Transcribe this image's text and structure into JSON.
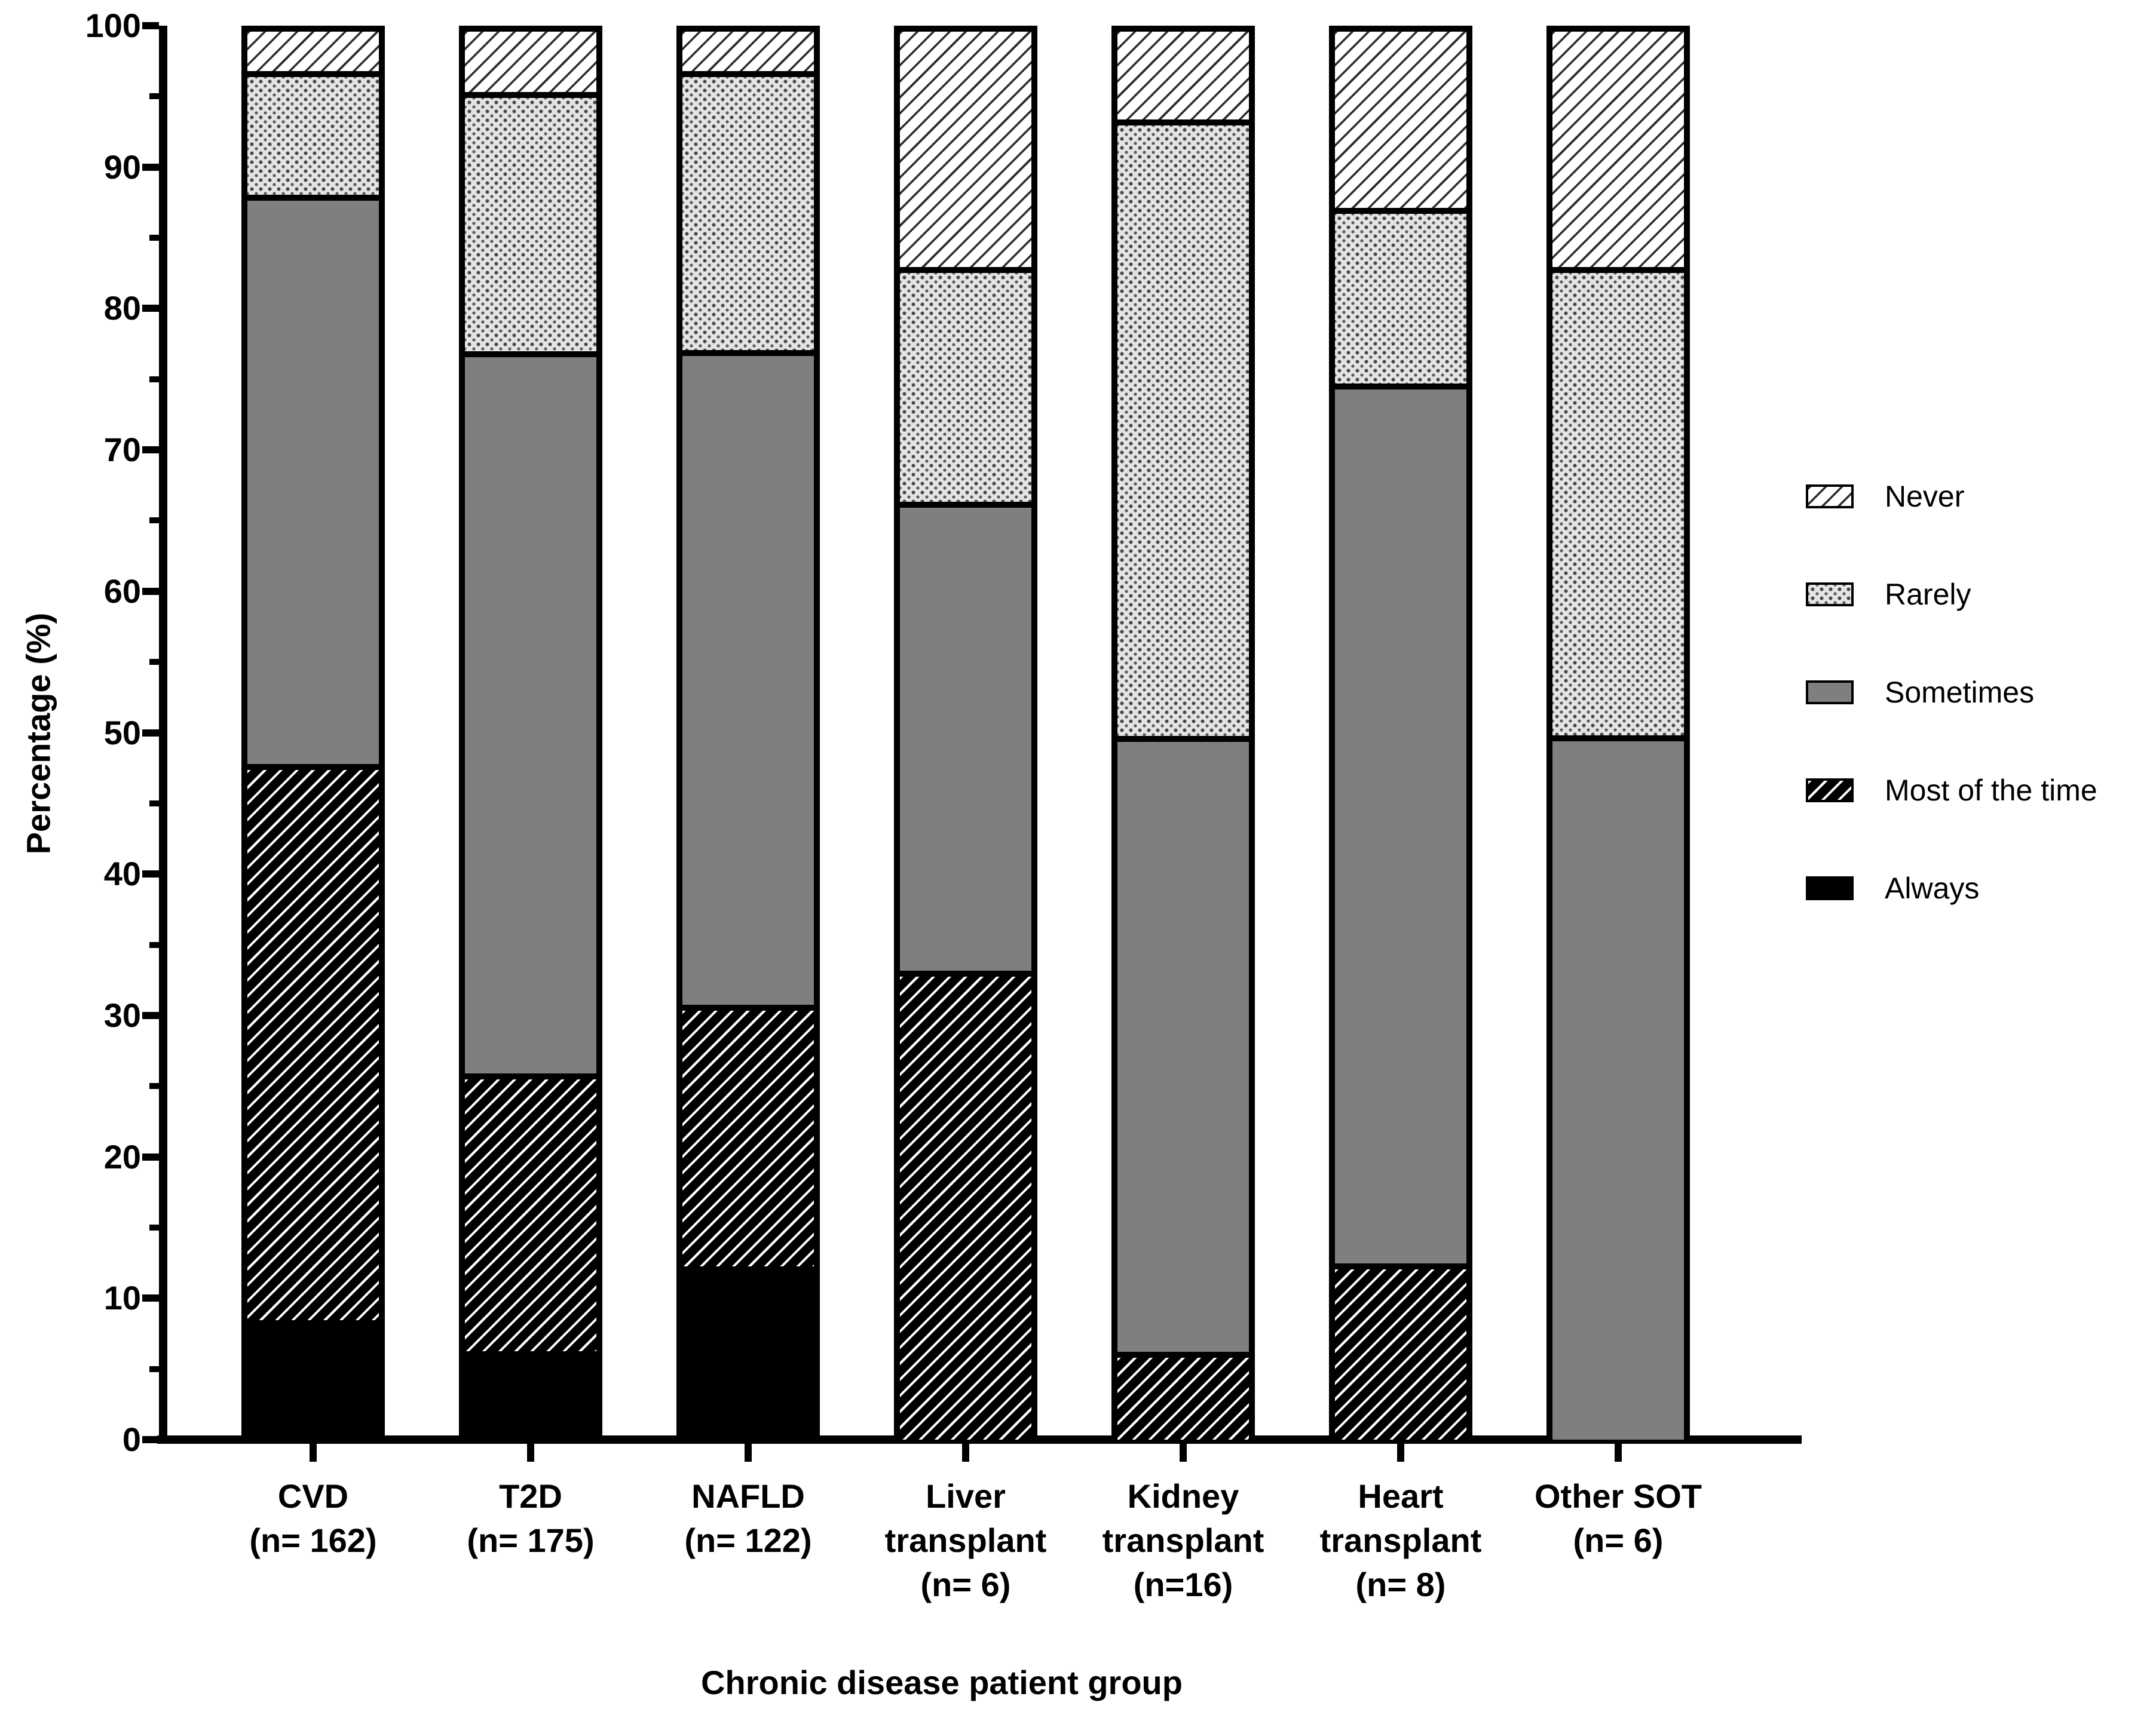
{
  "figure": {
    "background": "#ffffff",
    "colors": {
      "axis": "#000000",
      "solid_gray_fill": "#7f7f7f",
      "stipple_background": "#e4e4e4",
      "stipple_dot": "#474747",
      "hatch_dark_line": "#2e2e2e"
    },
    "y_axis": {
      "title": "Percentage (%)",
      "tick_labels": [
        "0",
        "10",
        "20",
        "30",
        "40",
        "50",
        "60",
        "70",
        "80",
        "90",
        "100"
      ],
      "major_tick_values": [
        0,
        10,
        20,
        30,
        40,
        50,
        60,
        70,
        80,
        90,
        100
      ],
      "minor_tick_values": [
        5,
        15,
        25,
        35,
        45,
        55,
        65,
        75,
        85,
        95
      ]
    },
    "x_axis": {
      "title": "Chronic disease patient group"
    },
    "legend": {
      "position": "right",
      "items_top_to_bottom": [
        {
          "label": "Never",
          "pattern": "hatch-on-white"
        },
        {
          "label": "Rarely",
          "pattern": "stipple"
        },
        {
          "label": "Sometimes",
          "pattern": "solid-gray"
        },
        {
          "label": "Most of the time",
          "pattern": "hatch-on-black"
        },
        {
          "label": "Always",
          "pattern": "solid-black"
        }
      ]
    }
  },
  "chart_data": {
    "type": "bar",
    "stacked": true,
    "title": "",
    "xlabel": "Chronic disease patient group",
    "ylabel": "Percentage (%)",
    "ylim": [
      0,
      100
    ],
    "grid": false,
    "legend_position": "right",
    "categories": [
      "CVD (n= 162)",
      "T2D (n= 175)",
      "NAFLD (n= 122)",
      "Liver transplant (n= 6)",
      "Kidney transplant (n=16)",
      "Heart transplant (n= 8)",
      "Other SOT (n= 6)"
    ],
    "category_label_lines": [
      [
        "CVD",
        "(n= 162)"
      ],
      [
        "T2D",
        "(n= 175)"
      ],
      [
        "NAFLD",
        "(n= 122)"
      ],
      [
        "Liver",
        "transplant",
        "(n= 6)"
      ],
      [
        "Kidney",
        "transplant",
        "(n=16)"
      ],
      [
        "Heart",
        "transplant",
        "(n= 8)"
      ],
      [
        "Other SOT",
        "(n= 6)"
      ]
    ],
    "series": [
      {
        "name": "Always",
        "pattern": "solid-black",
        "values": [
          8.5,
          6.3,
          12.3,
          0.0,
          0.0,
          0.0,
          0.0
        ]
      },
      {
        "name": "Most of the time",
        "pattern": "hatch-on-black",
        "values": [
          39.5,
          19.7,
          18.6,
          33.3,
          6.25,
          12.5,
          0.0
        ]
      },
      {
        "name": "Sometimes",
        "pattern": "solid-gray",
        "values": [
          40.4,
          51.3,
          46.5,
          33.3,
          43.75,
          62.5,
          50.0
        ]
      },
      {
        "name": "Rarely",
        "pattern": "stipple",
        "values": [
          8.8,
          18.4,
          19.8,
          16.7,
          43.75,
          12.5,
          33.3
        ]
      },
      {
        "name": "Never",
        "pattern": "hatch-on-white",
        "values": [
          2.8,
          4.3,
          2.8,
          16.7,
          6.25,
          12.5,
          16.7
        ]
      }
    ],
    "series_order_bottom_to_top": [
      "Always",
      "Most of the time",
      "Sometimes",
      "Rarely",
      "Never"
    ]
  }
}
